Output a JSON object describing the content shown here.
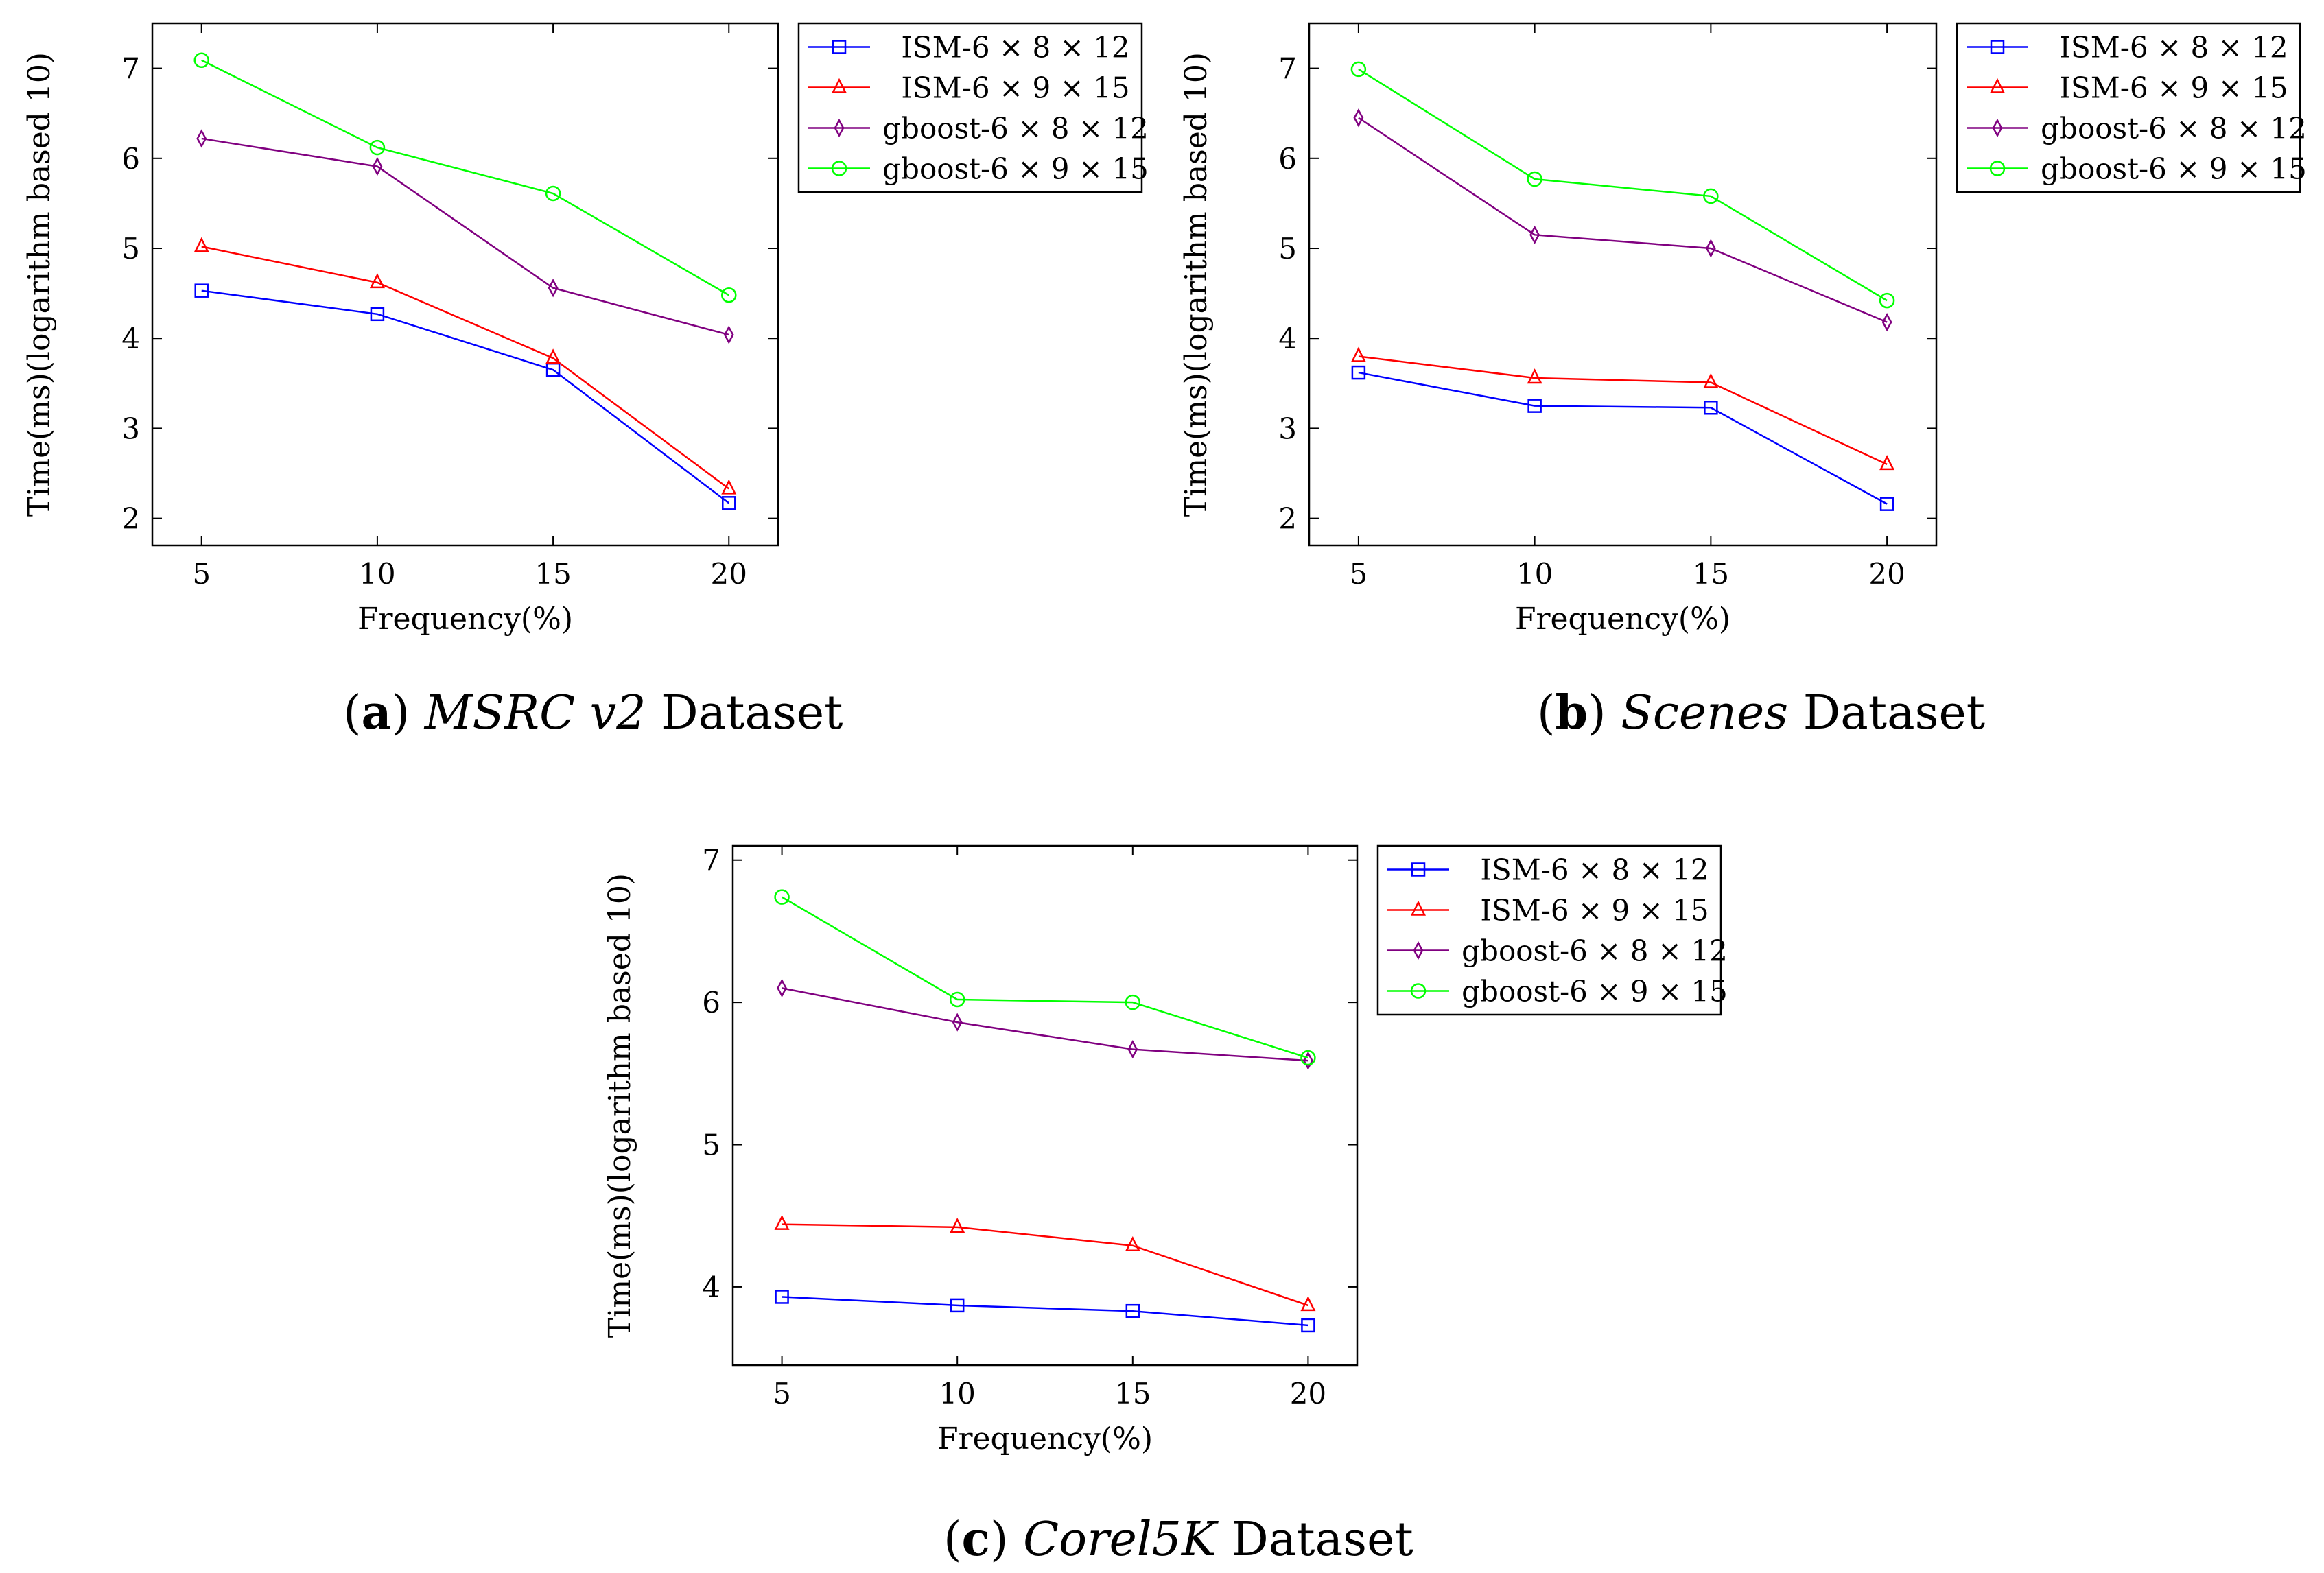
{
  "figure": {
    "legend_labels": [
      "ISM-6 × 8 × 12",
      "ISM-6 × 9 × 15",
      "gboost-6 × 8 × 12",
      "gboost-6 × 9 × 15"
    ],
    "series_colors": [
      "#0000ff",
      "#ff0000",
      "#800080",
      "#00ff00"
    ],
    "series_markers": [
      "square",
      "triangle",
      "diamond",
      "circle"
    ]
  },
  "chart_data": [
    {
      "type": "line",
      "panel": "a",
      "caption": {
        "letter": "a",
        "name": "MSRC v2",
        "suffix": "Dataset"
      },
      "xlabel": "Frequency(%)",
      "ylabel": "Time(ms)(logarithm based 10)",
      "x": [
        5,
        10,
        15,
        20
      ],
      "xticks": [
        5,
        10,
        15,
        20
      ],
      "yticks": [
        2,
        3,
        4,
        5,
        6,
        7
      ],
      "xlim": [
        3.6,
        21.4
      ],
      "ylim": [
        1.7,
        7.5
      ],
      "legend_position": "outside-top-right",
      "series": [
        {
          "name": "ISM-6 × 8 × 12",
          "values": [
            4.53,
            4.27,
            3.65,
            2.17
          ]
        },
        {
          "name": "ISM-6 × 9 × 15",
          "values": [
            5.02,
            4.62,
            3.78,
            2.33
          ]
        },
        {
          "name": "gboost-6 × 8 × 12",
          "values": [
            6.22,
            5.91,
            4.56,
            4.04
          ]
        },
        {
          "name": "gboost-6 × 9 × 15",
          "values": [
            7.09,
            6.12,
            5.61,
            4.48
          ]
        }
      ]
    },
    {
      "type": "line",
      "panel": "b",
      "caption": {
        "letter": "b",
        "name": "Scenes",
        "suffix": "Dataset"
      },
      "xlabel": "Frequency(%)",
      "ylabel": "Time(ms)(logarithm based 10)",
      "x": [
        5,
        10,
        15,
        20
      ],
      "xticks": [
        5,
        10,
        15,
        20
      ],
      "yticks": [
        2,
        3,
        4,
        5,
        6,
        7
      ],
      "xlim": [
        3.6,
        21.4
      ],
      "ylim": [
        1.7,
        7.5
      ],
      "legend_position": "outside-top-right",
      "series": [
        {
          "name": "ISM-6 × 8 × 12",
          "values": [
            3.62,
            3.25,
            3.23,
            2.16
          ]
        },
        {
          "name": "ISM-6 × 9 × 15",
          "values": [
            3.8,
            3.56,
            3.51,
            2.6
          ]
        },
        {
          "name": "gboost-6 × 8 × 12",
          "values": [
            6.45,
            5.15,
            5.0,
            4.18
          ]
        },
        {
          "name": "gboost-6 × 9 × 15",
          "values": [
            6.99,
            5.77,
            5.58,
            4.42
          ]
        }
      ]
    },
    {
      "type": "line",
      "panel": "c",
      "caption": {
        "letter": "c",
        "name": "Corel5K",
        "suffix": "Dataset"
      },
      "xlabel": "Frequency(%)",
      "ylabel": "Time(ms)(logarithm based 10)",
      "x": [
        5,
        10,
        15,
        20
      ],
      "xticks": [
        5,
        10,
        15,
        20
      ],
      "yticks": [
        4,
        5,
        6,
        7
      ],
      "xlim": [
        3.6,
        21.4
      ],
      "ylim": [
        3.45,
        7.1
      ],
      "legend_position": "outside-top-right",
      "series": [
        {
          "name": "ISM-6 × 8 × 12",
          "values": [
            3.93,
            3.87,
            3.83,
            3.73
          ]
        },
        {
          "name": "ISM-6 × 9 × 15",
          "values": [
            4.44,
            4.42,
            4.29,
            3.87
          ]
        },
        {
          "name": "gboost-6 × 8 × 12",
          "values": [
            6.1,
            5.86,
            5.67,
            5.59
          ]
        },
        {
          "name": "gboost-6 × 9 × 15",
          "values": [
            6.74,
            6.02,
            6.0,
            5.61
          ]
        }
      ]
    }
  ]
}
